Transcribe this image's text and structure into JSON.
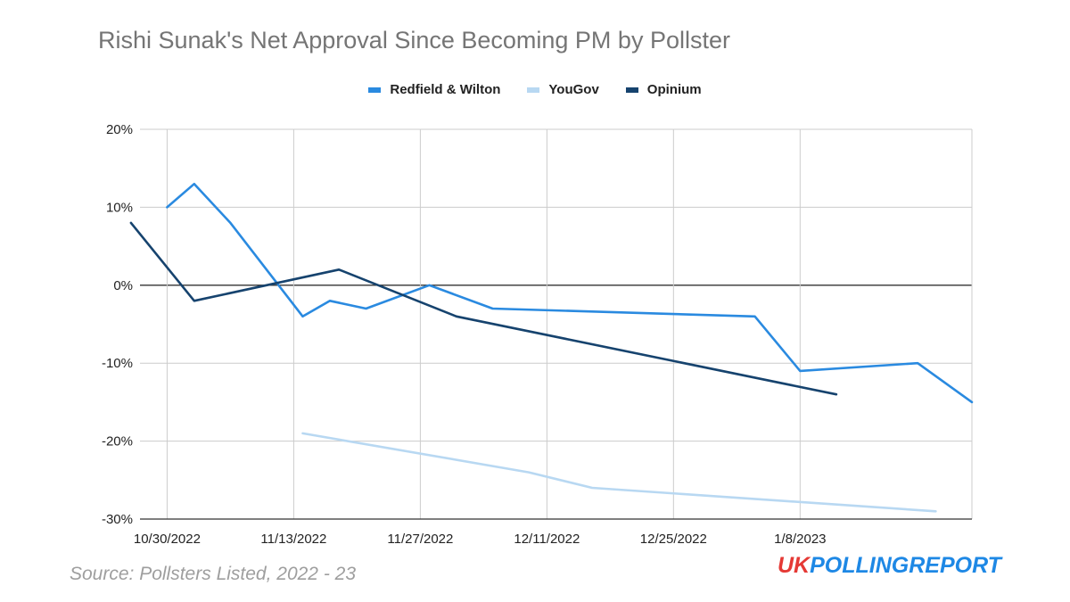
{
  "chart_data": {
    "type": "line",
    "title": "Rishi Sunak's Net Approval Since Becoming PM by Pollster",
    "xlabel": "",
    "ylabel": "",
    "x_range": [
      "2022-10-27",
      "2023-01-27"
    ],
    "x_ticks": [
      {
        "date": "2022-10-30",
        "label": "10/30/2022"
      },
      {
        "date": "2022-11-13",
        "label": "11/13/2022"
      },
      {
        "date": "2022-11-27",
        "label": "11/27/2022"
      },
      {
        "date": "2022-12-11",
        "label": "12/11/2022"
      },
      {
        "date": "2022-12-25",
        "label": "12/25/2022"
      },
      {
        "date": "2023-01-08",
        "label": "1/8/2023"
      }
    ],
    "ylim": [
      -30,
      20
    ],
    "y_ticks": [
      {
        "value": 20,
        "label": "20%"
      },
      {
        "value": 10,
        "label": "10%"
      },
      {
        "value": 0,
        "label": "0%"
      },
      {
        "value": -10,
        "label": "-10%"
      },
      {
        "value": -20,
        "label": "-20%"
      },
      {
        "value": -30,
        "label": "-30%"
      }
    ],
    "grid": true,
    "legend_position": "top",
    "series": [
      {
        "name": "Redfield & Wilton",
        "color": "#2a8ae0",
        "points": [
          {
            "x": "2022-10-30",
            "y": 10
          },
          {
            "x": "2022-11-02",
            "y": 13
          },
          {
            "x": "2022-11-06",
            "y": 8
          },
          {
            "x": "2022-11-14",
            "y": -4
          },
          {
            "x": "2022-11-17",
            "y": -2
          },
          {
            "x": "2022-11-21",
            "y": -3
          },
          {
            "x": "2022-11-28",
            "y": 0
          },
          {
            "x": "2022-12-05",
            "y": -3
          },
          {
            "x": "2023-01-03",
            "y": -4
          },
          {
            "x": "2023-01-08",
            "y": -11
          },
          {
            "x": "2023-01-21",
            "y": -10
          },
          {
            "x": "2023-01-27",
            "y": -15
          }
        ]
      },
      {
        "name": "YouGov",
        "color": "#b8d8f2",
        "points": [
          {
            "x": "2022-11-14",
            "y": -19
          },
          {
            "x": "2022-12-09",
            "y": -24
          },
          {
            "x": "2022-12-16",
            "y": -26
          },
          {
            "x": "2023-01-23",
            "y": -29
          }
        ]
      },
      {
        "name": "Opinium",
        "color": "#16436e",
        "points": [
          {
            "x": "2022-10-26",
            "y": 8
          },
          {
            "x": "2022-11-02",
            "y": -2
          },
          {
            "x": "2022-11-18",
            "y": 2
          },
          {
            "x": "2022-12-01",
            "y": -4
          },
          {
            "x": "2023-01-12",
            "y": -14
          }
        ]
      }
    ],
    "zero_line_color": "#333333"
  },
  "footer": {
    "source": "Source: Pollsters Listed, 2022 - 23",
    "brand_uk": "UK",
    "brand_rest": "POLLINGREPORT"
  }
}
